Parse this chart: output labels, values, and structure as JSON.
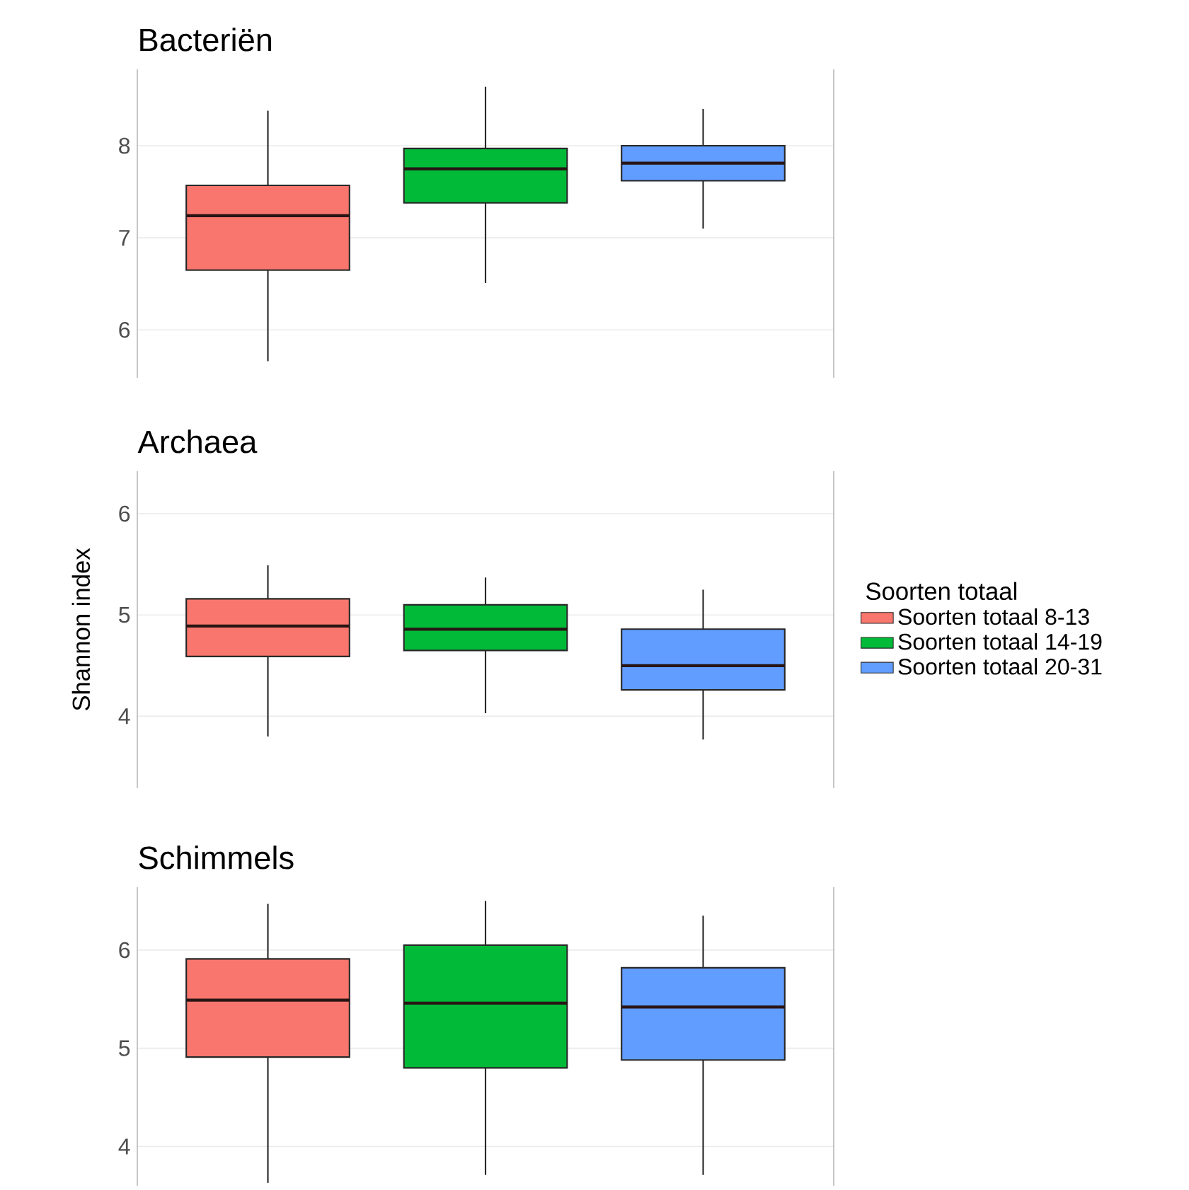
{
  "chart_data": [
    {
      "type": "box",
      "title": "Bacteriën",
      "categories": [
        null,
        null,
        null
      ],
      "ylim": [
        5.48,
        8.83
      ],
      "yticks": [
        6,
        7,
        8
      ],
      "grid": true,
      "series": [
        {
          "color": "#f8766d",
          "boxes": [
            {
              "low": 5.66,
              "q1": 6.65,
              "median": 7.24,
              "q3": 7.57,
              "high": 8.38
            },
            null,
            null
          ]
        },
        {
          "color": "#00ba38",
          "boxes": [
            null,
            {
              "low": 6.51,
              "q1": 7.38,
              "median": 7.75,
              "q3": 7.97,
              "high": 8.64
            },
            null
          ]
        },
        {
          "color": "#619cff",
          "boxes": [
            null,
            null,
            {
              "low": 7.1,
              "q1": 7.62,
              "median": 7.81,
              "q3": 8.0,
              "high": 8.4
            }
          ]
        }
      ]
    },
    {
      "type": "box",
      "title": "Archaea",
      "ylabel": "Shannon index",
      "legend_title": "Soorten totaal",
      "legend": "right",
      "categories": [
        null,
        null,
        null
      ],
      "ylim": [
        3.29,
        6.42
      ],
      "yticks": [
        4,
        5,
        6
      ],
      "grid": true,
      "series": [
        {
          "name": "Soorten totaal 8-13",
          "color": "#f8766d",
          "boxes": [
            {
              "low": 3.8,
              "q1": 4.59,
              "median": 4.89,
              "q3": 5.16,
              "high": 5.49
            },
            null,
            null
          ]
        },
        {
          "name": "Soorten totaal 14-19",
          "color": "#00ba38",
          "boxes": [
            null,
            {
              "low": 4.03,
              "q1": 4.65,
              "median": 4.86,
              "q3": 5.1,
              "high": 5.37
            },
            null
          ]
        },
        {
          "name": "Soorten totaal 20-31",
          "color": "#619cff",
          "boxes": [
            null,
            null,
            {
              "low": 3.77,
              "q1": 4.26,
              "median": 4.5,
              "q3": 4.86,
              "high": 5.25
            }
          ]
        }
      ]
    },
    {
      "type": "box",
      "title": "Schimmels",
      "categories": [
        null,
        null,
        null
      ],
      "ylim": [
        3.6,
        6.64
      ],
      "yticks": [
        4,
        5,
        6
      ],
      "grid": true,
      "series": [
        {
          "color": "#f8766d",
          "boxes": [
            {
              "low": 3.63,
              "q1": 4.91,
              "median": 5.49,
              "q3": 5.91,
              "high": 6.47
            },
            null,
            null
          ]
        },
        {
          "color": "#00ba38",
          "boxes": [
            null,
            {
              "low": 3.71,
              "q1": 4.8,
              "median": 5.46,
              "q3": 6.05,
              "high": 6.5
            },
            null
          ]
        },
        {
          "color": "#619cff",
          "boxes": [
            null,
            null,
            {
              "low": 3.71,
              "q1": 4.88,
              "median": 5.42,
              "q3": 5.82,
              "high": 6.35
            }
          ]
        }
      ]
    }
  ]
}
